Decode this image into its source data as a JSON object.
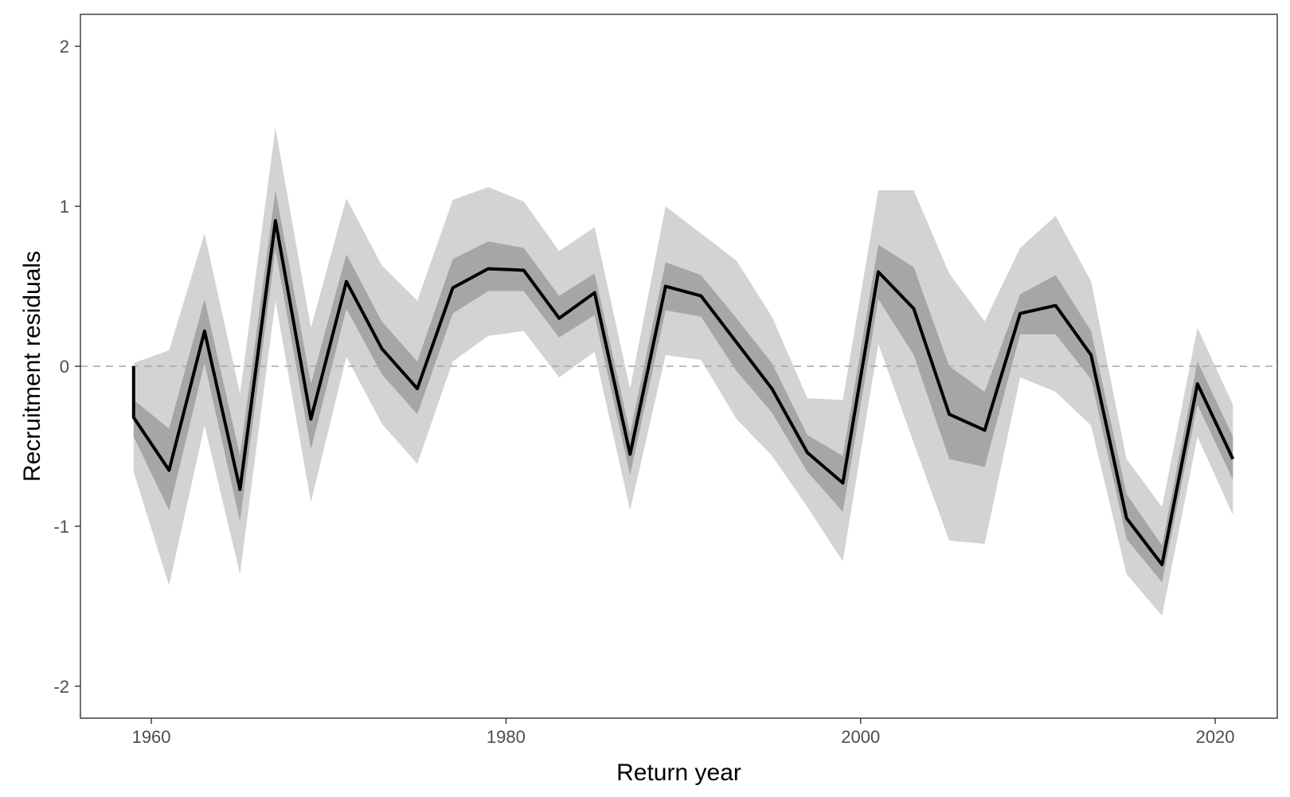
{
  "chart_data": {
    "type": "area",
    "title": "",
    "xlabel": "Return year",
    "ylabel": "Recruitment residuals",
    "xlim": [
      1956,
      2023.5
    ],
    "ylim": [
      -2.2,
      2.2
    ],
    "x_ticks": [
      1960,
      1980,
      2000,
      2020
    ],
    "y_ticks": [
      -2,
      -1,
      0,
      1,
      2
    ],
    "grid": false,
    "legend": "none",
    "reference_line": {
      "y": 0,
      "style": "dashed",
      "color": "#a6a6a6"
    },
    "x": [
      1959,
      1961,
      1963,
      1965,
      1967,
      1969,
      1971,
      1973,
      1975,
      1977,
      1979,
      1981,
      1983,
      1985,
      1987,
      1989,
      1991,
      1993,
      1995,
      1997,
      1999,
      2001,
      2003,
      2005,
      2007,
      2009,
      2011,
      2013,
      2015,
      2017,
      2019,
      2021
    ],
    "series": [
      {
        "role": "outer_band",
        "color": "#d3d3d3",
        "lower": [
          -0.66,
          -1.37,
          -0.37,
          -1.3,
          0.41,
          -0.85,
          0.06,
          -0.36,
          -0.61,
          0.03,
          0.19,
          0.22,
          -0.07,
          0.09,
          -0.9,
          0.07,
          0.04,
          -0.33,
          -0.56,
          -0.88,
          -1.22,
          0.14,
          -0.48,
          -1.09,
          -1.11,
          -0.07,
          -0.16,
          -0.37,
          -1.3,
          -1.56,
          -0.44,
          -0.93
        ],
        "upper": [
          0.02,
          0.1,
          0.83,
          -0.17,
          1.49,
          0.24,
          1.05,
          0.63,
          0.41,
          1.04,
          1.12,
          1.03,
          0.72,
          0.87,
          -0.14,
          1.0,
          0.83,
          0.66,
          0.31,
          -0.2,
          -0.21,
          1.1,
          1.1,
          0.58,
          0.28,
          0.74,
          0.94,
          0.53,
          -0.58,
          -0.88,
          0.24,
          -0.24
        ]
      },
      {
        "role": "inner_band",
        "color": "#a6a6a6",
        "lower": [
          -0.44,
          -0.9,
          0.02,
          -0.97,
          0.73,
          -0.52,
          0.36,
          -0.05,
          -0.3,
          0.33,
          0.47,
          0.47,
          0.18,
          0.32,
          -0.68,
          0.35,
          0.31,
          -0.03,
          -0.29,
          -0.66,
          -0.91,
          0.42,
          0.07,
          -0.58,
          -0.63,
          0.2,
          0.2,
          -0.08,
          -1.08,
          -1.35,
          -0.24,
          -0.71
        ],
        "upper": [
          -0.21,
          -0.39,
          0.42,
          -0.56,
          1.1,
          -0.11,
          0.7,
          0.28,
          0.03,
          0.67,
          0.78,
          0.74,
          0.44,
          0.58,
          -0.42,
          0.65,
          0.57,
          0.3,
          0.02,
          -0.43,
          -0.56,
          0.76,
          0.62,
          0.0,
          -0.16,
          0.45,
          0.57,
          0.22,
          -0.8,
          -1.12,
          0.03,
          -0.44
        ]
      },
      {
        "role": "median",
        "color": "#000000",
        "values": [
          -0.32,
          -0.65,
          0.22,
          -0.77,
          0.91,
          -0.33,
          0.53,
          0.11,
          -0.14,
          0.49,
          0.61,
          0.6,
          0.3,
          0.46,
          -0.55,
          0.5,
          0.44,
          0.15,
          -0.14,
          -0.54,
          -0.73,
          0.59,
          0.36,
          -0.3,
          -0.4,
          0.33,
          0.38,
          0.07,
          -0.95,
          -1.24,
          -0.11,
          -0.58
        ]
      }
    ]
  }
}
